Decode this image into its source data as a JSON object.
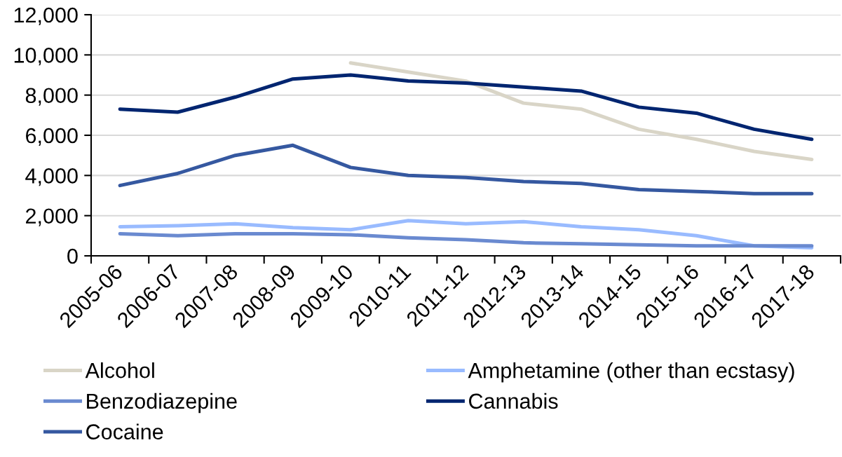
{
  "chart_data": {
    "type": "line",
    "categories": [
      "2005-06",
      "2006-07",
      "2007-08",
      "2008-09",
      "2009-10",
      "2010-11",
      "2011-12",
      "2012-13",
      "2013-14",
      "2014-15",
      "2015-16",
      "2016-17",
      "2017-18"
    ],
    "ylim": [
      0,
      12000
    ],
    "yticks": [
      0,
      {
        "value": 2000,
        "label": "2,000"
      },
      {
        "value": 4000,
        "label": "4,000"
      },
      {
        "value": 6000,
        "label": "6,000"
      },
      {
        "value": 8000,
        "label": "8,000"
      },
      {
        "value": 10000,
        "label": "10,000"
      },
      {
        "value": 12000,
        "label": "12,000"
      }
    ],
    "grid": "y",
    "legend": "bottom",
    "line_style": "solid",
    "series": [
      {
        "name": "Alcohol",
        "color": "#d9d5c7",
        "values": [
          null,
          null,
          null,
          null,
          9600,
          9150,
          8700,
          7600,
          7300,
          6300,
          5800,
          5200,
          4800
        ]
      },
      {
        "name": "Amphetamine (other than ecstasy)",
        "color": "#99bbff",
        "values": [
          1450,
          1500,
          1600,
          1400,
          1300,
          1750,
          1600,
          1700,
          1450,
          1300,
          1000,
          500,
          400
        ]
      },
      {
        "name": "Benzodiazepine",
        "color": "#6a8ad0",
        "values": [
          1100,
          1000,
          1100,
          1100,
          1050,
          900,
          800,
          650,
          600,
          550,
          500,
          500,
          500
        ]
      },
      {
        "name": "Cannabis",
        "color": "#002570",
        "values": [
          7300,
          7150,
          7900,
          8800,
          9000,
          8700,
          8600,
          8400,
          8200,
          7400,
          7100,
          6300,
          5800
        ]
      },
      {
        "name": "Cocaine",
        "color": "#3558a0",
        "values": [
          3500,
          4100,
          5000,
          5500,
          4400,
          4000,
          3900,
          3700,
          3600,
          3300,
          3200,
          3100,
          3100
        ]
      }
    ]
  }
}
